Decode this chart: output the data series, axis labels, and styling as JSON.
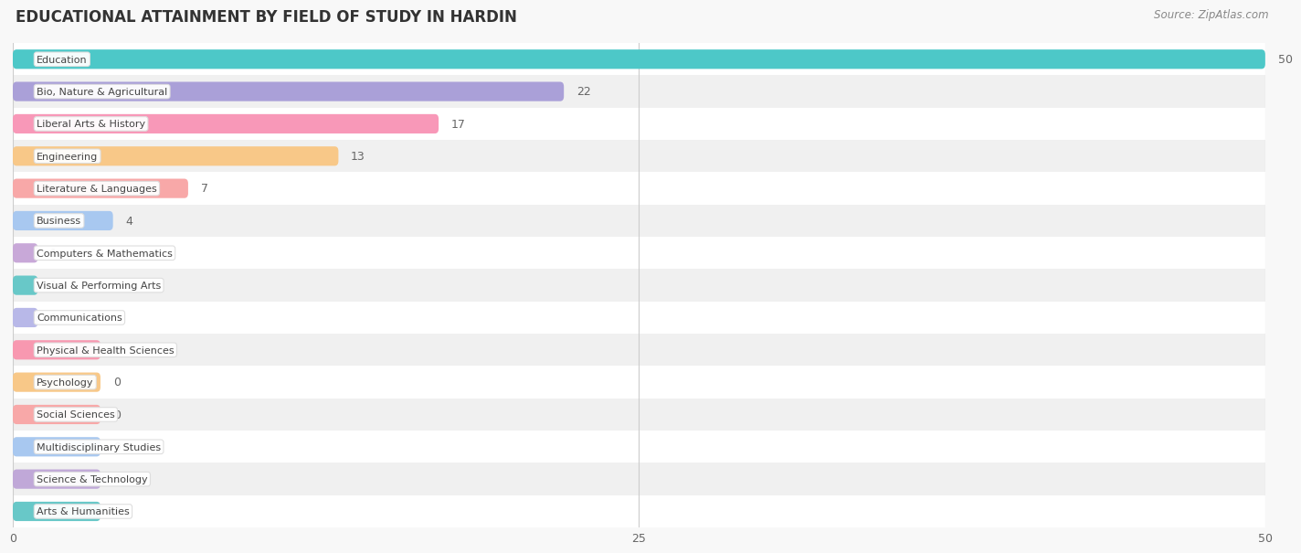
{
  "title": "EDUCATIONAL ATTAINMENT BY FIELD OF STUDY IN HARDIN",
  "source": "Source: ZipAtlas.com",
  "categories": [
    "Education",
    "Bio, Nature & Agricultural",
    "Liberal Arts & History",
    "Engineering",
    "Literature & Languages",
    "Business",
    "Computers & Mathematics",
    "Visual & Performing Arts",
    "Communications",
    "Physical & Health Sciences",
    "Psychology",
    "Social Sciences",
    "Multidisciplinary Studies",
    "Science & Technology",
    "Arts & Humanities"
  ],
  "values": [
    50,
    22,
    17,
    13,
    7,
    4,
    1,
    1,
    1,
    0,
    0,
    0,
    0,
    0,
    0
  ],
  "bar_colors": [
    "#4dc8c8",
    "#aaa0d8",
    "#f898b8",
    "#f8c888",
    "#f8a8a8",
    "#a8c8f0",
    "#c8a8d8",
    "#68c8c8",
    "#b8b8e8",
    "#f898b0",
    "#f8c888",
    "#f8a8a8",
    "#a8c8f0",
    "#c0a8d8",
    "#68c8c8"
  ],
  "dot_colors": [
    "#4dc8c8",
    "#aaa0d8",
    "#f898b8",
    "#f8c888",
    "#f8a8a8",
    "#a8c8f0",
    "#c8a8d8",
    "#68c8c8",
    "#b8b8e8",
    "#f898b0",
    "#f8c888",
    "#f8a8a8",
    "#a8c8f0",
    "#c0a8d8",
    "#68c8c8"
  ],
  "xlim": [
    0,
    50
  ],
  "xticks": [
    0,
    25,
    50
  ],
  "background_color": "#f8f8f8",
  "row_colors": [
    "#ffffff",
    "#f0f0f0"
  ],
  "title_fontsize": 12,
  "bar_height": 0.6,
  "zero_bar_width": 3.5
}
